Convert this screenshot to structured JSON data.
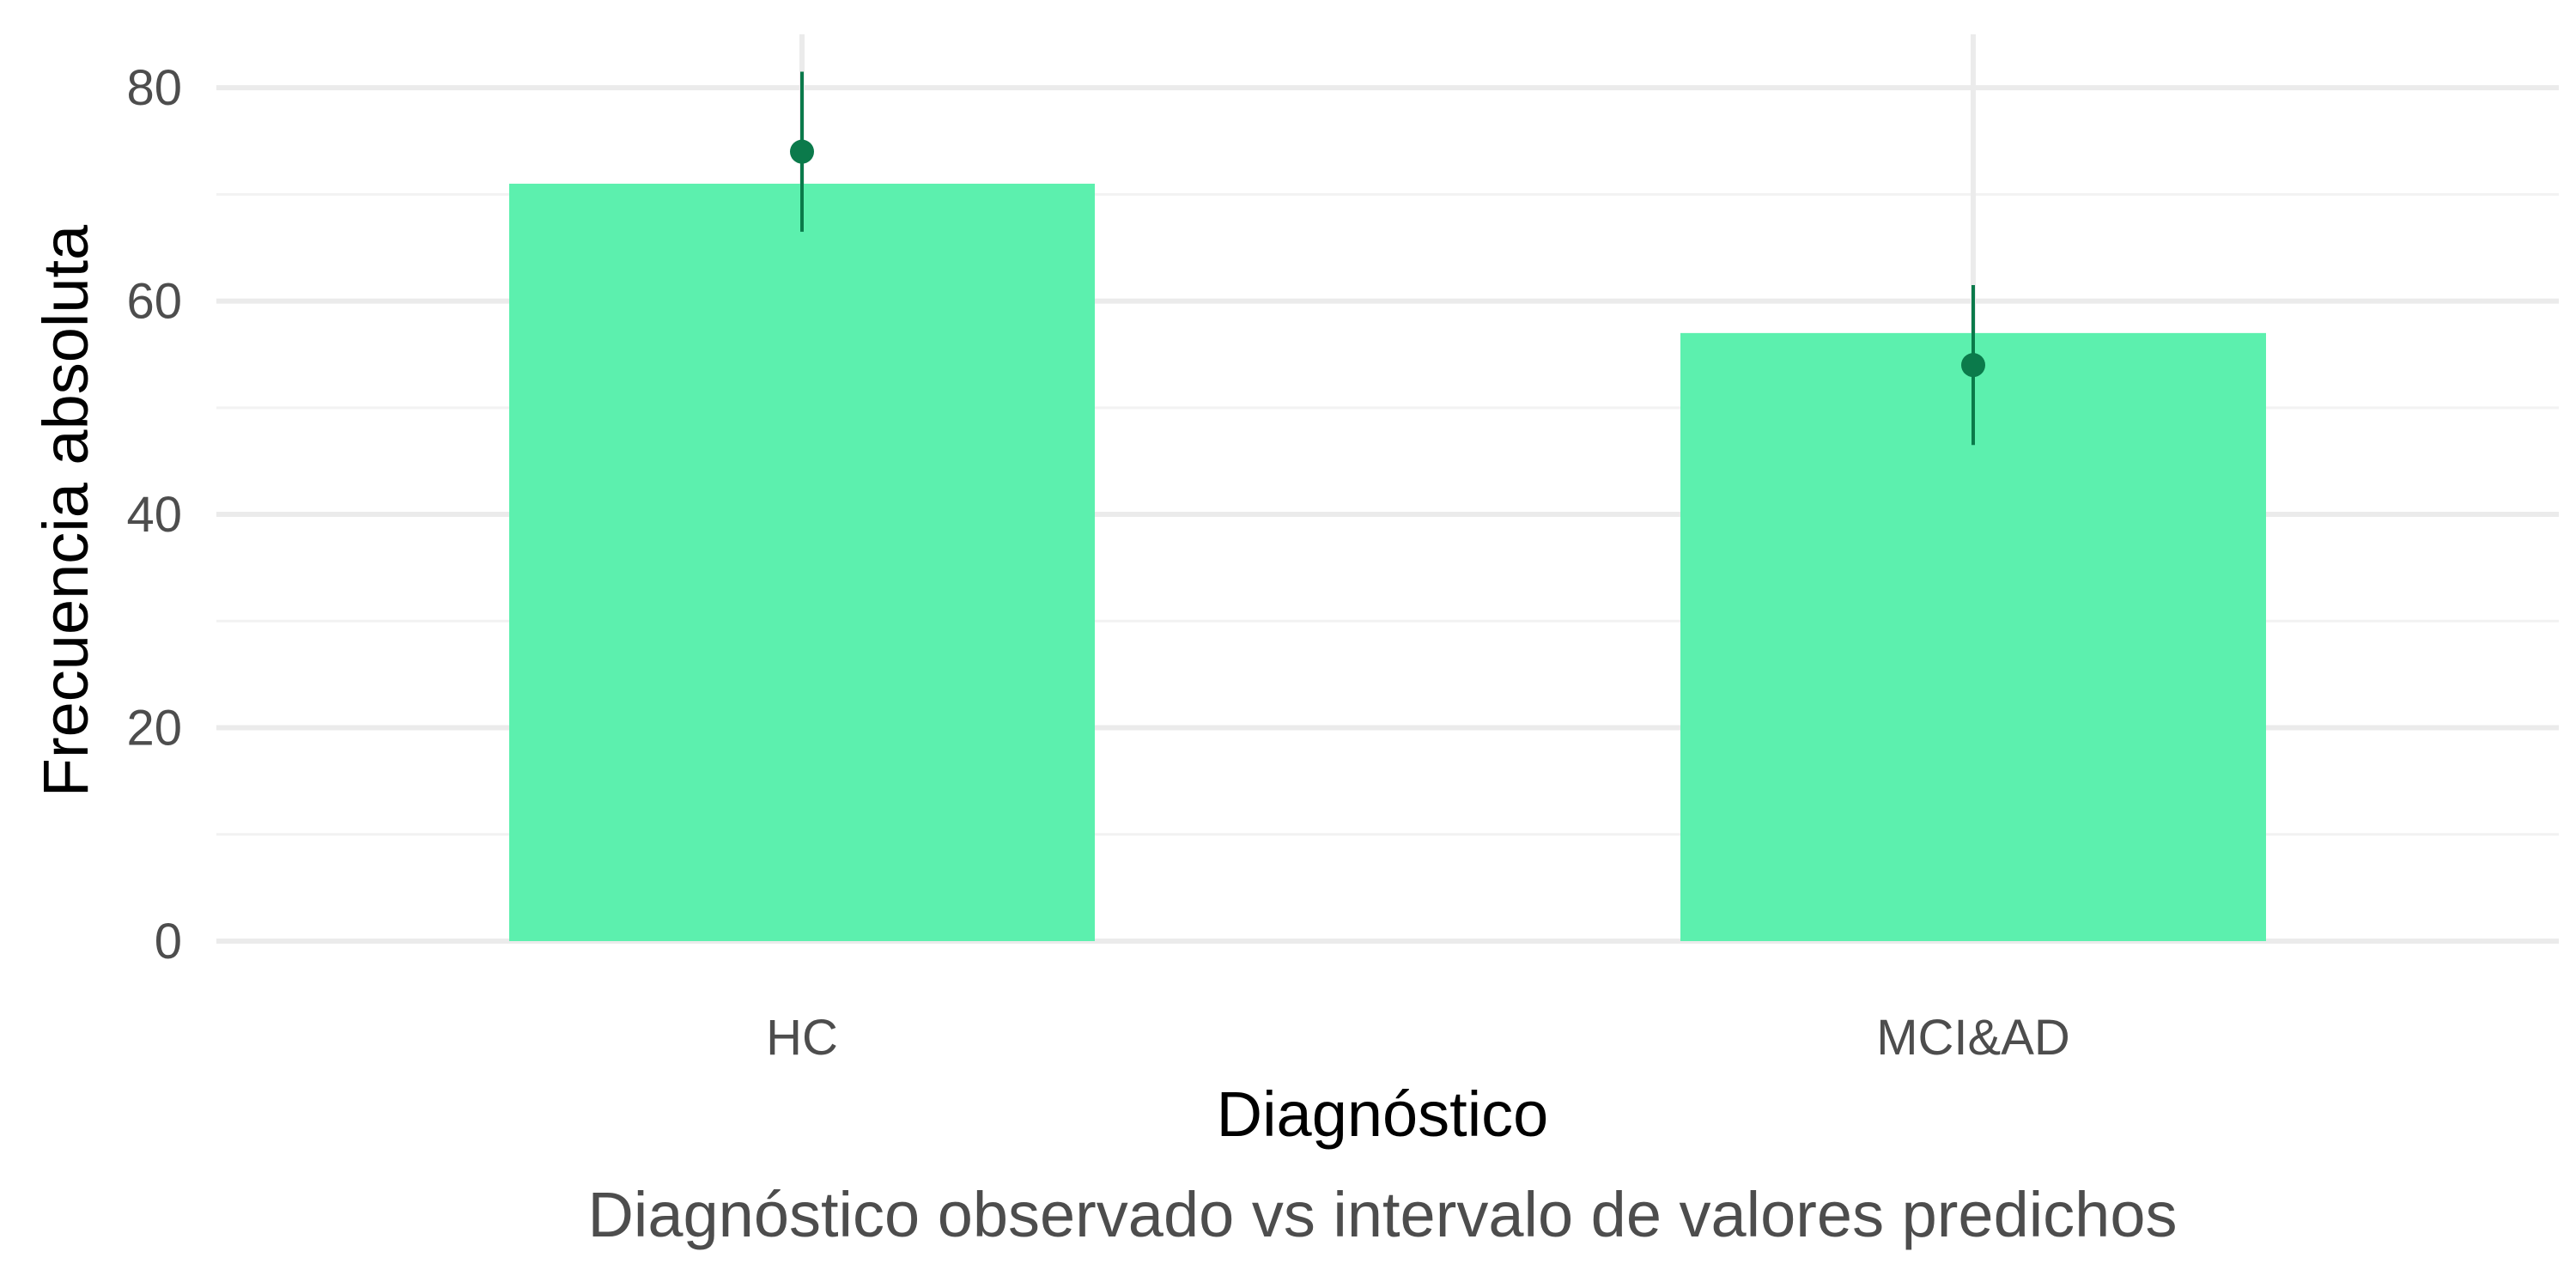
{
  "chart_data": {
    "type": "bar",
    "categories": [
      "HC",
      "MCI&AD"
    ],
    "values": [
      71,
      57
    ],
    "interval": {
      "point": [
        74,
        54
      ],
      "lower": [
        66.5,
        46.5
      ],
      "upper": [
        81.5,
        61.5
      ]
    },
    "xlabel": "Diagnóstico",
    "ylabel": "Frecuencia absoluta",
    "caption": "Diagnóstico observado vs intervalo de valores predichos",
    "ylim": [
      0,
      85
    ],
    "yticks": [
      0,
      20,
      40,
      60,
      80
    ],
    "grid": true,
    "colors": {
      "bar": "#5cf0ae",
      "interval": "#0b7a4b",
      "grid_major": "#ebebeb",
      "grid_minor": "#f2f2f2"
    }
  }
}
